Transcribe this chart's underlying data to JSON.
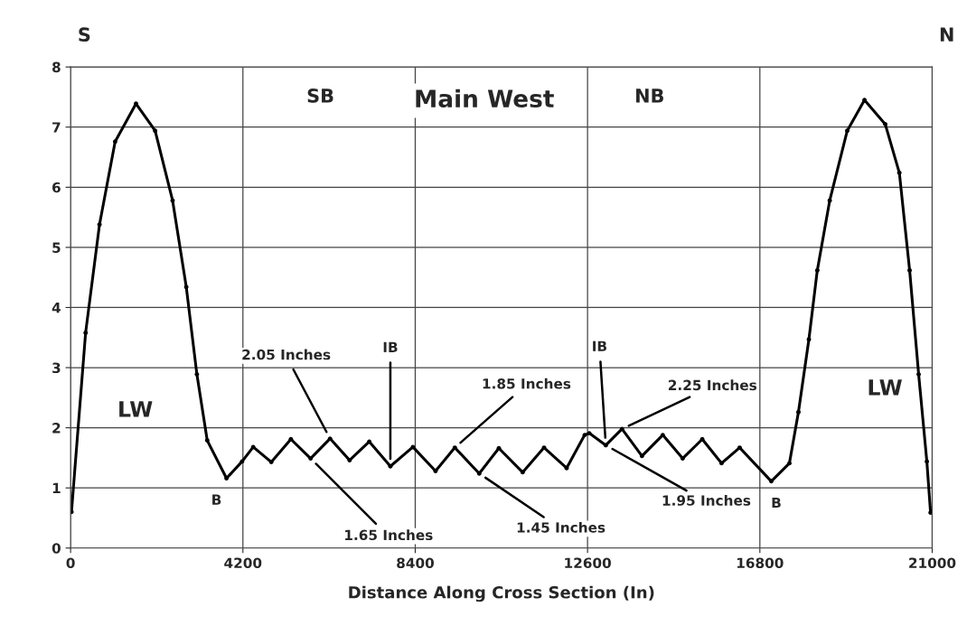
{
  "chart_data": {
    "type": "line",
    "title": "Main West",
    "xlabel": "Distance Along Cross Section (In)",
    "x": [
      22,
      366,
      705,
      1086,
      1595,
      2060,
      2486,
      2820,
      3078,
      3330,
      3800,
      4180,
      4451,
      4892,
      5370,
      5850,
      6324,
      6800,
      7280,
      7794,
      8344,
      8895,
      9365,
      9960,
      10438,
      11018,
      11540,
      12090,
      12530,
      12641,
      13045,
      13440,
      13926,
      14433,
      14918,
      15396,
      15866,
      16307,
      17078,
      17520,
      17740,
      17995,
      18200,
      18503,
      18930,
      19350,
      19855,
      20200,
      20450,
      20670,
      20870,
      20960
    ],
    "series": [
      {
        "color": "#000000",
        "values": [
          0.6,
          3.58,
          5.38,
          6.76,
          7.39,
          6.94,
          5.78,
          4.34,
          2.89,
          1.79,
          1.16,
          1.44,
          1.68,
          1.43,
          1.81,
          1.49,
          1.82,
          1.46,
          1.77,
          1.36,
          1.68,
          1.28,
          1.67,
          1.24,
          1.66,
          1.26,
          1.67,
          1.33,
          1.88,
          1.91,
          1.71,
          1.98,
          1.53,
          1.88,
          1.49,
          1.81,
          1.41,
          1.67,
          1.11,
          1.41,
          2.26,
          3.47,
          4.62,
          5.78,
          6.94,
          7.45,
          7.05,
          6.24,
          4.62,
          2.89,
          1.44,
          0.59
        ]
      }
    ],
    "xlim": [
      0,
      21000
    ],
    "xticks": [
      0,
      4200,
      8400,
      12600,
      16800,
      21000
    ],
    "ylim": [
      0,
      8
    ],
    "yticks": [
      0,
      1,
      2,
      3,
      4,
      5,
      6,
      7,
      8
    ],
    "grid": true,
    "marker": "circle",
    "line_style": "solid",
    "annotations": [
      {
        "text": "B",
        "x": 3800,
        "y": 1.16
      },
      {
        "text": "2.05 Inches",
        "x": 6324,
        "y": 1.82
      },
      {
        "text": "1.65 Inches",
        "x": 5850,
        "y": 1.49
      },
      {
        "text": "IB",
        "x": 7794,
        "y": 1.36
      },
      {
        "text": "1.85 Inches",
        "x": 9365,
        "y": 1.67
      },
      {
        "text": "1.45 Inches",
        "x": 9960,
        "y": 1.24
      },
      {
        "text": "IB",
        "x": 13045,
        "y": 1.71
      },
      {
        "text": "2.25 Inches",
        "x": 13440,
        "y": 1.98
      },
      {
        "text": "1.95 Inches",
        "x": 13045,
        "y": 1.71
      },
      {
        "text": "B",
        "x": 17078,
        "y": 1.11
      },
      "S",
      "N",
      "SB",
      "NB",
      "LW",
      "LW"
    ]
  }
}
